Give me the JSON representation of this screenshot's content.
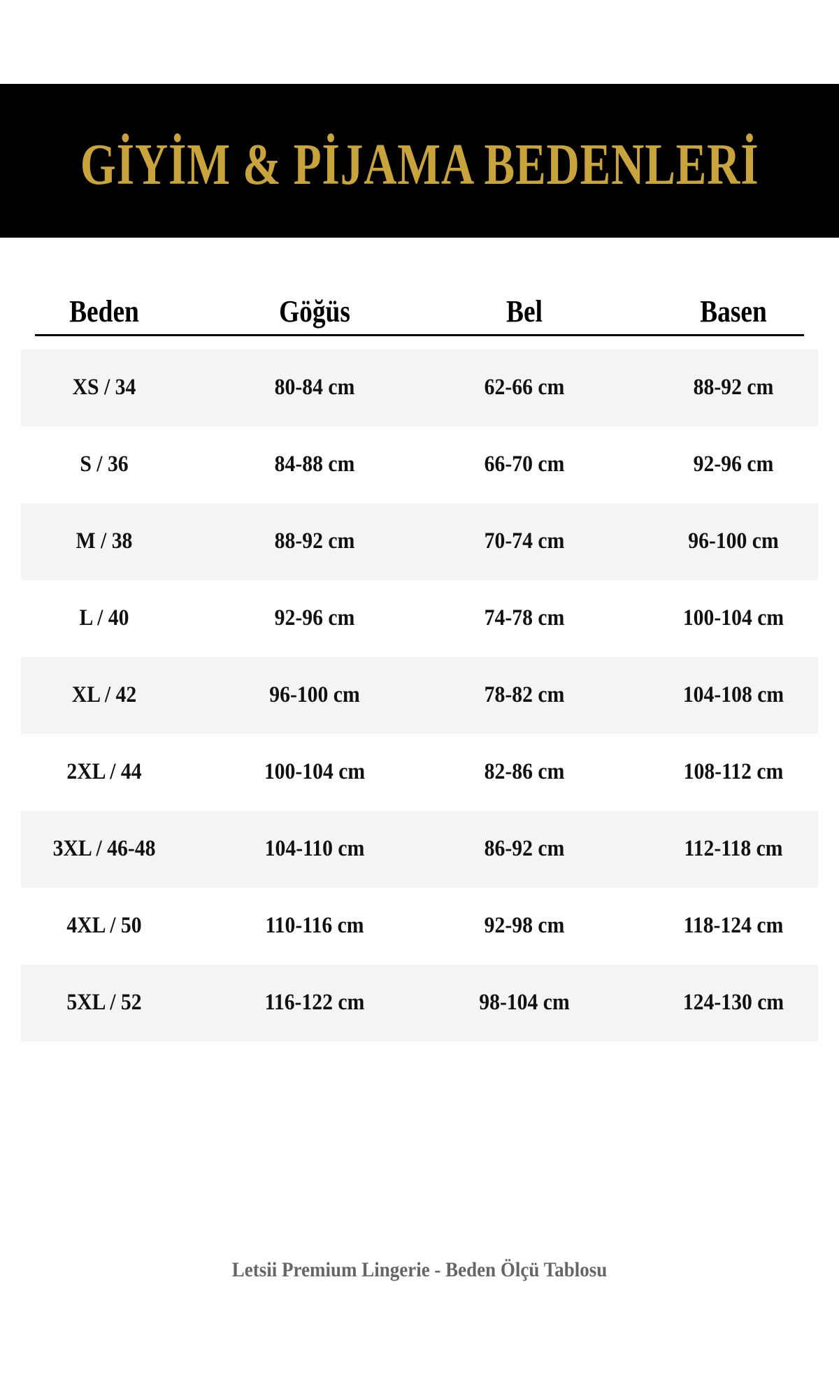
{
  "title": "GİYİM & PİJAMA BEDENLERİ",
  "colors": {
    "banner_bg": "#000000",
    "title_gold": "#c9a43c",
    "row_shade": "#f4f4f4",
    "footer_text": "#666666"
  },
  "table": {
    "headers": [
      "Beden",
      "Göğüs",
      "Bel",
      "Basen"
    ],
    "rows": [
      [
        "XS / 34",
        "80-84 cm",
        "62-66 cm",
        "88-92 cm"
      ],
      [
        "S / 36",
        "84-88 cm",
        "66-70 cm",
        "92-96 cm"
      ],
      [
        "M / 38",
        "88-92 cm",
        "70-74 cm",
        "96-100 cm"
      ],
      [
        "L / 40",
        "92-96 cm",
        "74-78 cm",
        "100-104 cm"
      ],
      [
        "XL / 42",
        "96-100 cm",
        "78-82 cm",
        "104-108 cm"
      ],
      [
        "2XL / 44",
        "100-104 cm",
        "82-86 cm",
        "108-112 cm"
      ],
      [
        "3XL / 46-48",
        "104-110 cm",
        "86-92 cm",
        "112-118 cm"
      ],
      [
        "4XL / 50",
        "110-116 cm",
        "92-98 cm",
        "118-124 cm"
      ],
      [
        "5XL / 52",
        "116-122 cm",
        "98-104 cm",
        "124-130 cm"
      ]
    ]
  },
  "footer": "Letsii Premium Lingerie - Beden Ölçü Tablosu"
}
